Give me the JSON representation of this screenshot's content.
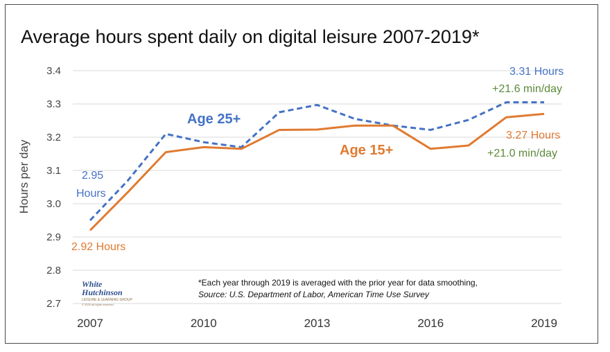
{
  "chart_data": {
    "type": "line",
    "title": "Average hours spent daily on digital leisure 2007-2019*",
    "ylabel": "Hours per day",
    "xlabel": "",
    "ylim": [
      2.7,
      3.4
    ],
    "xlim": [
      2007,
      2019
    ],
    "yticks": [
      "2.7",
      "2.8",
      "2.9",
      "3.0",
      "3.1",
      "3.2",
      "3.3",
      "3.4"
    ],
    "xticks": [
      "2007",
      "2010",
      "2013",
      "2016",
      "2019"
    ],
    "grid": true,
    "series": [
      {
        "name": "Age 25+",
        "color": "#4472c4",
        "style": "dashed",
        "x": [
          2007,
          2008,
          2009,
          2010,
          2011,
          2012,
          2013,
          2014,
          2015,
          2016,
          2017,
          2018,
          2019
        ],
        "values": [
          2.95,
          3.07,
          3.21,
          3.185,
          3.17,
          3.275,
          3.297,
          3.255,
          3.235,
          3.222,
          3.252,
          3.305,
          3.305
        ]
      },
      {
        "name": "Age 15+",
        "color": "#e07a30",
        "style": "solid",
        "x": [
          2007,
          2008,
          2009,
          2010,
          2011,
          2012,
          2013,
          2014,
          2015,
          2016,
          2017,
          2018,
          2019
        ],
        "values": [
          2.92,
          3.035,
          3.155,
          3.17,
          3.165,
          3.222,
          3.223,
          3.235,
          3.235,
          3.165,
          3.175,
          3.26,
          3.27
        ]
      }
    ],
    "annotations": [
      {
        "id": "start25-value",
        "text": "2.95",
        "color": "#4472c4"
      },
      {
        "id": "start25-unit",
        "text": "Hours",
        "color": "#4472c4"
      },
      {
        "id": "start15",
        "text": "2.92 Hours",
        "color": "#e07a30"
      },
      {
        "id": "end25-value",
        "text": "3.31 Hours",
        "color": "#4472c4"
      },
      {
        "id": "end25-change",
        "text": "+21.6 min/day",
        "color": "#5b8a3a"
      },
      {
        "id": "end15-value",
        "text": "3.27 Hours",
        "color": "#e07a30"
      },
      {
        "id": "end15-change",
        "text": "+21.0 min/day",
        "color": "#5b8a3a"
      }
    ],
    "footnote": "*Each year  through 2019  is averaged with the prior year for data smoothing,",
    "source": "Source: U.S. Department of Labor, American Time Use Survey"
  },
  "logo": {
    "line1": "White",
    "line2": "Hutchinson",
    "line3": "LEISURE & LEARNING GROUP",
    "line4": "© 2020 all rights reserved"
  }
}
